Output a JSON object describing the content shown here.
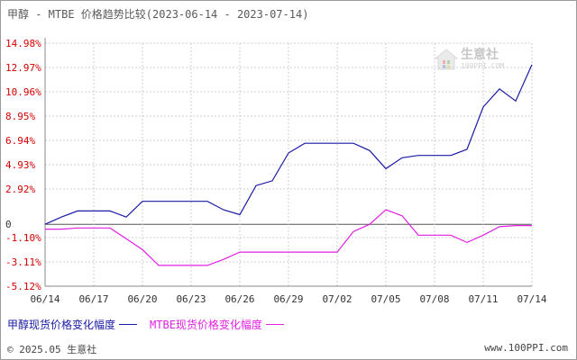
{
  "title": "甲醇 - MTBE 价格趋势比较(2023-06-14 - 2023-07-14)",
  "watermark": {
    "name": "生意社",
    "url": "100PPI.COM"
  },
  "footer": {
    "copyright": "© 2025.05 生意社",
    "site": "www.100PPI.com"
  },
  "colors": {
    "series1": "#1a1aa6",
    "series2": "#e020e0",
    "grid": "#cfcfcf",
    "axis": "#888888",
    "ytick": "#d40000",
    "zero": "#555555"
  },
  "chart_data": {
    "type": "line",
    "title": "甲醇 - MTBE 价格趋势比较(2023-06-14 - 2023-07-14)",
    "xlabel": "",
    "ylabel": "",
    "grid": true,
    "legend_position": "bottom-left",
    "ylim": [
      -5.12,
      14.98
    ],
    "y_ticks": [
      "14.98%",
      "12.97%",
      "10.96%",
      "8.95%",
      "6.94%",
      "4.93%",
      "2.92%",
      "0",
      "-1.10%",
      "-3.11%",
      "-5.12%"
    ],
    "y_tick_values": [
      14.98,
      12.97,
      10.96,
      8.95,
      6.94,
      4.93,
      2.92,
      0,
      -1.1,
      -3.11,
      -5.12
    ],
    "x_ticks": [
      "06/14",
      "06/17",
      "06/20",
      "06/23",
      "06/26",
      "06/29",
      "07/02",
      "07/05",
      "07/08",
      "07/11",
      "07/14"
    ],
    "x": [
      "06/14",
      "06/15",
      "06/16",
      "06/17",
      "06/18",
      "06/19",
      "06/20",
      "06/21",
      "06/22",
      "06/23",
      "06/24",
      "06/25",
      "06/26",
      "06/27",
      "06/28",
      "06/29",
      "06/30",
      "07/01",
      "07/02",
      "07/03",
      "07/04",
      "07/05",
      "07/06",
      "07/07",
      "07/08",
      "07/09",
      "07/10",
      "07/11",
      "07/12",
      "07/13",
      "07/14"
    ],
    "series": [
      {
        "name": "甲醇现货价格变化幅度",
        "color": "#1a1aa6",
        "values": [
          0,
          0.6,
          1.1,
          1.1,
          1.1,
          0.6,
          1.9,
          1.9,
          1.9,
          1.9,
          1.9,
          1.2,
          0.8,
          3.2,
          3.6,
          5.9,
          6.7,
          6.7,
          6.7,
          6.7,
          6.1,
          4.6,
          5.5,
          5.7,
          5.7,
          5.7,
          6.2,
          9.7,
          11.2,
          10.2,
          13.2
        ]
      },
      {
        "name": "MTBE现货价格变化幅度",
        "color": "#e020e0",
        "values": [
          -0.4,
          -0.4,
          -0.3,
          -0.3,
          -0.3,
          -1.2,
          -2.1,
          -3.4,
          -3.4,
          -3.4,
          -3.4,
          -2.9,
          -2.3,
          -2.3,
          -2.3,
          -2.3,
          -2.3,
          -2.3,
          -2.3,
          -0.6,
          0,
          1.2,
          0.7,
          -0.9,
          -0.9,
          -0.9,
          -1.5,
          -0.9,
          -0.2,
          -0.1,
          -0.1
        ]
      }
    ]
  }
}
